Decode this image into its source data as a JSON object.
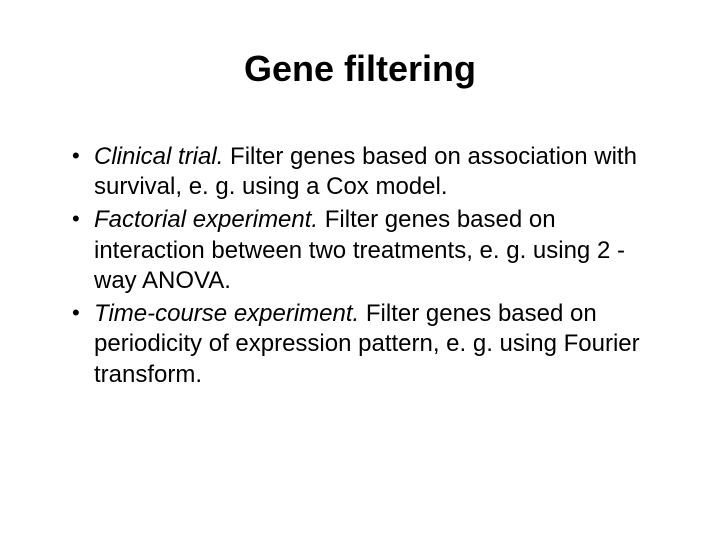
{
  "title": "Gene filtering",
  "bullets": [
    {
      "lead": "Clinical trial.",
      "rest": " Filter genes based on association with survival, e. g. using a Cox model."
    },
    {
      "lead": "Factorial experiment.",
      "rest": " Filter genes based on interaction between two treatments, e. g. using 2 -way ANOVA."
    },
    {
      "lead": "Time-course experiment.",
      "rest": " Filter genes based on periodicity of expression pattern, e. g. using Fourier transform."
    }
  ],
  "colors": {
    "background": "#ffffff",
    "text": "#000000"
  },
  "typography": {
    "title_fontsize": 36,
    "title_weight": "bold",
    "body_fontsize": 24,
    "font_family": "Arial"
  }
}
